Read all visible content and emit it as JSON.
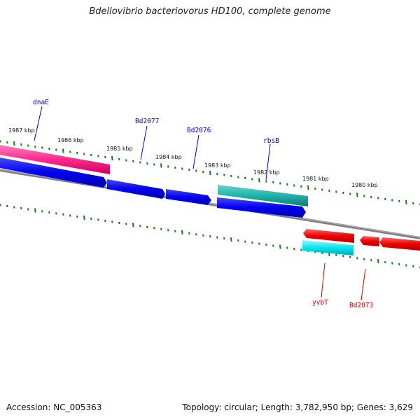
{
  "title": "Bdellovibrio bacteriovorus HD100, complete genome",
  "footer": {
    "accession": "Accession: NC_005363",
    "topology": "Topology: circular; Length: 3,782,950 bp; Genes: 3,629"
  },
  "ruler": {
    "labels": [
      "1987 kbp",
      "1986 kbp",
      "1985 kbp",
      "1984 kbp",
      "1983 kbp",
      "1982 kbp",
      "1981 kbp",
      "1980 kbp"
    ]
  },
  "genes": {
    "forward_labels": [
      "dnaE",
      "Bd2077",
      "Bd2076",
      "rbsB"
    ],
    "reverse_labels": [
      "yvbT",
      "Bd2073"
    ]
  },
  "colors": {
    "forward_label": "#0000cc",
    "reverse_label": "#cc0000",
    "tick": "#1a7a1a",
    "backbone": "#808080",
    "gene_blue": "#0000ee",
    "gene_pink": "#ff2a8a",
    "gene_teal": "#20b2aa",
    "gene_cyan": "#00e5ee",
    "gene_red": "#ee0000"
  }
}
